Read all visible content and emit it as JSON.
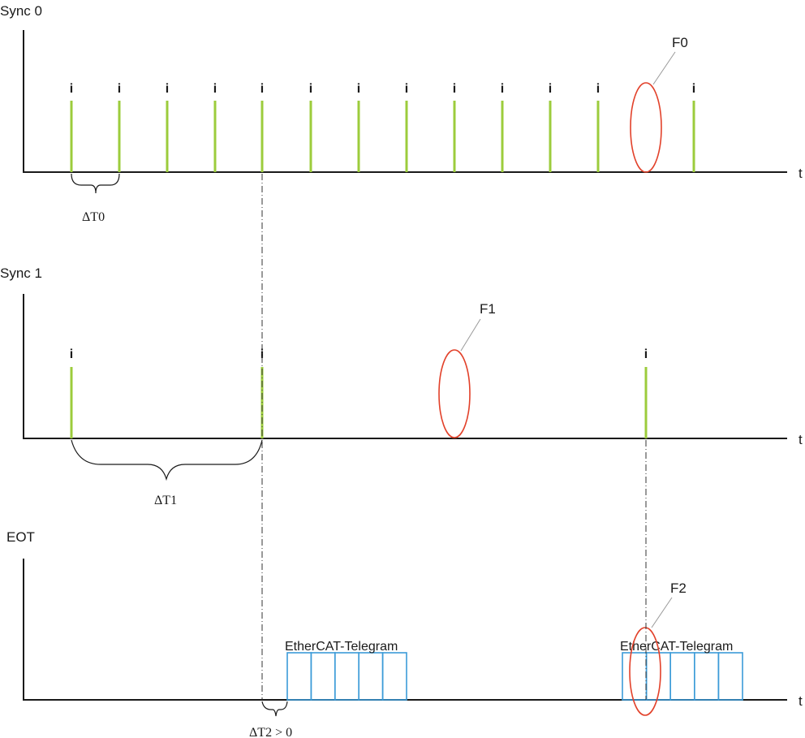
{
  "sync0": {
    "title": "Sync 0",
    "axis_label": "t",
    "pulse_marker": "i",
    "interval_label": "ΔT0",
    "fault_label": "F0"
  },
  "sync1": {
    "title": "Sync 1",
    "axis_label": "t",
    "pulse_marker": "i",
    "interval_label": "ΔT1",
    "fault_label": "F1"
  },
  "eot": {
    "title": "EOT",
    "axis_label": "t",
    "telegram_label_1": "EtherCAT-Telegram",
    "telegram_label_2": "EtherCAT-Telegram",
    "delay_label": "ΔT2 > 0",
    "fault_label": "F2"
  },
  "colors": {
    "pulse": "#9ccc3c",
    "fault": "#e2412a",
    "telegram": "#3b9bd8",
    "axis": "#1a1a1a"
  }
}
